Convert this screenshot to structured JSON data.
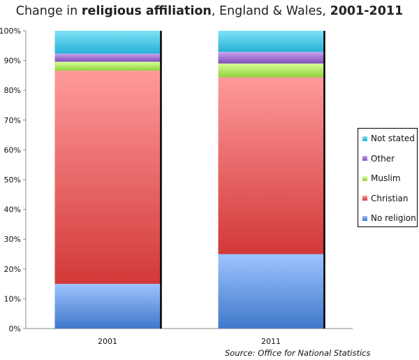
{
  "chart_data": {
    "type": "bar",
    "stacked": true,
    "title_prefix": "Change in ",
    "title_bold_1": "religious affiliation",
    "title_middle": ", England & Wales, ",
    "title_bold_2": "2001-2011",
    "source": "Source: Office for National Statistics",
    "categories": [
      "2001",
      "2011"
    ],
    "ylim": [
      0,
      100
    ],
    "yticks": [
      "0%",
      "10%",
      "20%",
      "30%",
      "40%",
      "50%",
      "60%",
      "70%",
      "80%",
      "90%",
      "100%"
    ],
    "grid": false,
    "legend_position": "right",
    "series": [
      {
        "name": "No religion",
        "values": [
          15.0,
          25.0
        ],
        "color_light": "#9ec3ff",
        "color_dark": "#3f78c9"
      },
      {
        "name": "Christian",
        "values": [
          71.6,
          59.4
        ],
        "color_light": "#ff9a9a",
        "color_dark": "#d23838"
      },
      {
        "name": "Muslim",
        "values": [
          3.0,
          4.6
        ],
        "color_light": "#d8ff9a",
        "color_dark": "#8fd23a"
      },
      {
        "name": "Other",
        "values": [
          2.7,
          3.9
        ],
        "color_light": "#c9a3ee",
        "color_dark": "#7c4fb8"
      },
      {
        "name": "Not stated",
        "values": [
          7.7,
          7.1
        ],
        "color_light": "#7fe1f5",
        "color_dark": "#27b2d8"
      }
    ],
    "legend_order": [
      "Not stated",
      "Other",
      "Muslim",
      "Christian",
      "No religion"
    ]
  }
}
